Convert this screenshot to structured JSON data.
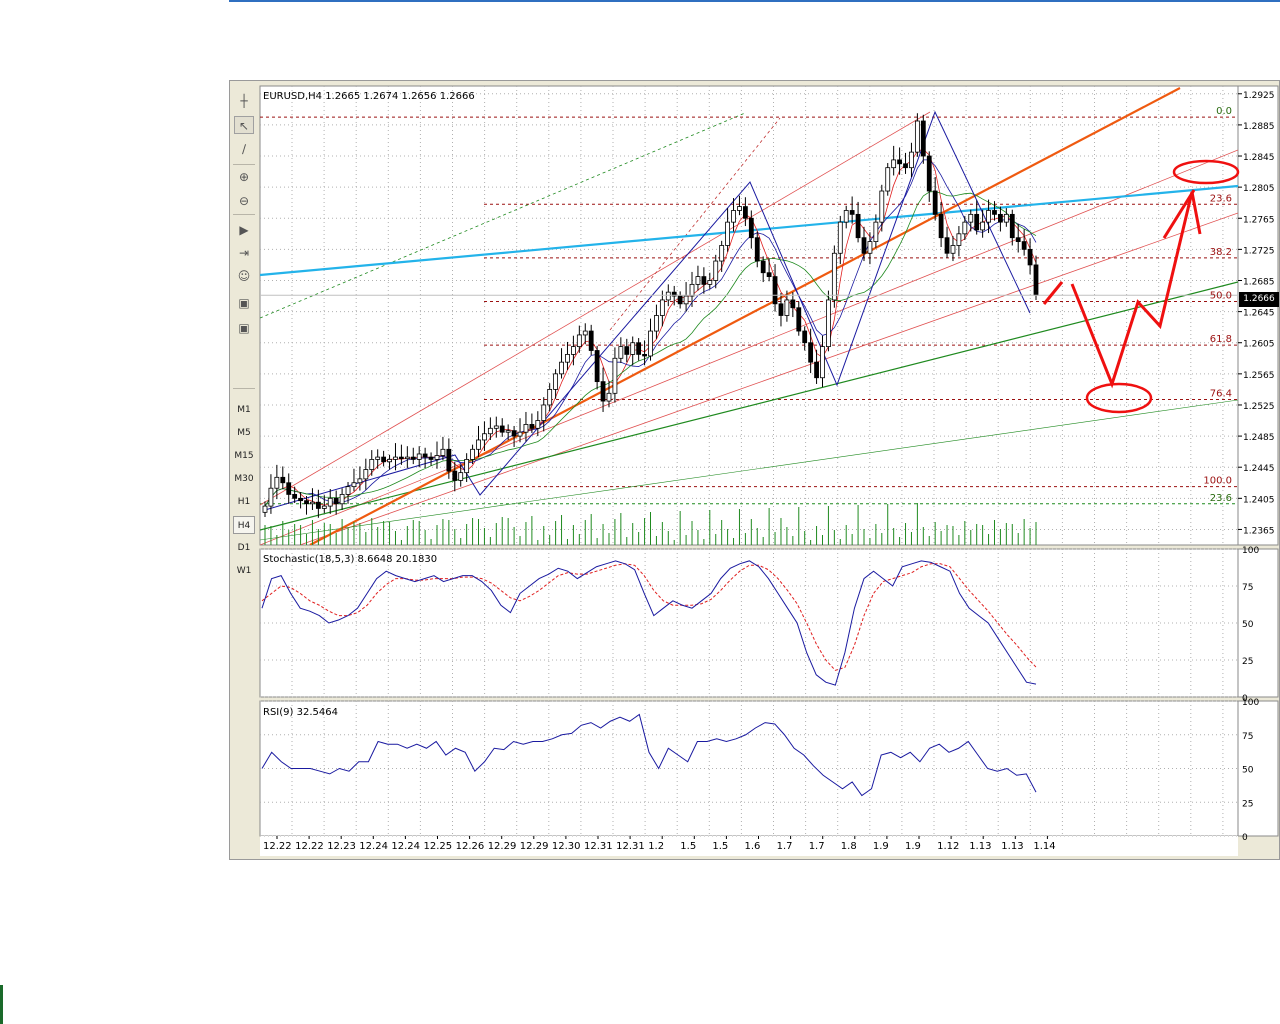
{
  "chart_data": [
    {
      "type": "candlestick",
      "title": "EURUSD,H4  1.2665 1.2674 1.2656 1.2666",
      "symbol": "EURUSD",
      "timeframe": "H4",
      "ohlc_header": {
        "open": 1.2665,
        "high": 1.2674,
        "low": 1.2656,
        "close": 1.2666
      },
      "last_price": "1.2666",
      "ylim": [
        1.2345,
        1.2935
      ],
      "y_ticks": [
        "1.2925",
        "1.2885",
        "1.2845",
        "1.2805",
        "1.2765",
        "1.2725",
        "1.2685",
        "1.2645",
        "1.2605",
        "1.2565",
        "1.2525",
        "1.2485",
        "1.2445",
        "1.2405",
        "1.2365"
      ],
      "x_tick_labels": [
        "12.22",
        "12.22",
        "12.23",
        "12.24",
        "12.24",
        "12.25",
        "12.26",
        "12.29",
        "12.29",
        "12.30",
        "12.31",
        "12.31",
        "1.2",
        "1.5",
        "1.5",
        "1.6",
        "1.7",
        "1.7",
        "1.8",
        "1.9",
        "1.9",
        "1.12",
        "1.13",
        "1.13",
        "1.14"
      ],
      "grid": true,
      "series": [
        {
          "name": "EURUSD",
          "close": [
            1.2395,
            1.2418,
            1.2432,
            1.2425,
            1.241,
            1.2405,
            1.2402,
            1.2398,
            1.24,
            1.2392,
            1.2395,
            1.2405,
            1.2398,
            1.241,
            1.242,
            1.2425,
            1.243,
            1.2442,
            1.2455,
            1.2458,
            1.2452,
            1.2455,
            1.2458,
            1.2456,
            1.2458,
            1.2455,
            1.2462,
            1.2458,
            1.2455,
            1.246,
            1.2468,
            1.244,
            1.2428,
            1.2438,
            1.2455,
            1.2468,
            1.248,
            1.2488,
            1.2495,
            1.2498,
            1.249,
            1.2492,
            1.2485,
            1.249,
            1.25,
            1.2495,
            1.2505,
            1.2525,
            1.2545,
            1.2565,
            1.258,
            1.259,
            1.26,
            1.2615,
            1.262,
            1.2595,
            1.2555,
            1.253,
            1.254,
            1.2585,
            1.26,
            1.259,
            1.2605,
            1.259,
            1.2588,
            1.262,
            1.264,
            1.266,
            1.267,
            1.2665,
            1.2655,
            1.2665,
            1.268,
            1.269,
            1.268,
            1.2685,
            1.271,
            1.273,
            1.276,
            1.2775,
            1.278,
            1.2765,
            1.274,
            1.271,
            1.2695,
            1.269,
            1.2655,
            1.264,
            1.266,
            1.265,
            1.262,
            1.2605,
            1.258,
            1.256,
            1.26,
            1.266,
            1.272,
            1.276,
            1.2775,
            1.277,
            1.274,
            1.272,
            1.2735,
            1.276,
            1.28,
            1.283,
            1.284,
            1.2835,
            1.283,
            1.285,
            1.289,
            1.2845,
            1.28,
            1.277,
            1.274,
            1.272,
            1.273,
            1.2745,
            1.276,
            1.277,
            1.275,
            1.276,
            1.2775,
            1.277,
            1.276,
            1.277,
            1.274,
            1.2735,
            1.2725,
            1.2705,
            1.2666
          ]
        }
      ],
      "indicator_values": {
        "fibonacci_levels": [
          {
            "label": "0.0",
            "price": 1.2895
          },
          {
            "label": "23.6",
            "price": 1.2783
          },
          {
            "label": "38.2",
            "price": 1.2714
          },
          {
            "label": "50.0",
            "price": 1.2658
          },
          {
            "label": "61.8",
            "price": 1.2602
          },
          {
            "label": "76.4",
            "price": 1.2532
          },
          {
            "label": "100.0",
            "price": 1.242
          },
          {
            "label": "23.6",
            "price": 1.2398
          }
        ]
      }
    },
    {
      "type": "line",
      "title": "Stochastic(18,5,3)  8.6648  20.1830",
      "ylim": [
        0,
        100
      ],
      "y_ticks": [
        "100",
        "75",
        "50",
        "25",
        "0"
      ],
      "series": [
        {
          "name": "main",
          "values": [
            60,
            80,
            82,
            70,
            60,
            58,
            55,
            50,
            52,
            55,
            60,
            70,
            80,
            85,
            82,
            80,
            78,
            80,
            82,
            78,
            80,
            82,
            82,
            78,
            72,
            62,
            57,
            70,
            75,
            80,
            83,
            87,
            85,
            80,
            84,
            88,
            90,
            92,
            90,
            86,
            70,
            55,
            60,
            65,
            62,
            60,
            65,
            70,
            80,
            87,
            90,
            92,
            88,
            80,
            70,
            60,
            50,
            30,
            15,
            10,
            8,
            30,
            60,
            80,
            85,
            80,
            75,
            88,
            90,
            92,
            91,
            88,
            85,
            70,
            60,
            55,
            50,
            40,
            30,
            20,
            10,
            8.7
          ]
        },
        {
          "name": "signal",
          "values": [
            65,
            70,
            75,
            74,
            70,
            65,
            62,
            58,
            55,
            55,
            57,
            62,
            70,
            76,
            80,
            80,
            79,
            79,
            80,
            80,
            80,
            81,
            81,
            80,
            77,
            72,
            67,
            65,
            68,
            72,
            77,
            82,
            84,
            83,
            83,
            85,
            87,
            89,
            90,
            89,
            82,
            72,
            65,
            62,
            62,
            62,
            63,
            66,
            72,
            79,
            85,
            89,
            89,
            86,
            80,
            72,
            63,
            50,
            36,
            25,
            18,
            20,
            35,
            55,
            70,
            78,
            80,
            82,
            84,
            88,
            90,
            90,
            88,
            80,
            72,
            65,
            58,
            50,
            42,
            35,
            27,
            20.2
          ]
        }
      ]
    },
    {
      "type": "line",
      "title": "RSI(9)  32.5464",
      "ylim": [
        0,
        100
      ],
      "y_ticks": [
        "100",
        "75",
        "50",
        "25",
        "0"
      ],
      "series": [
        {
          "name": "RSI(9)",
          "values": [
            50,
            62,
            55,
            50,
            50,
            50,
            48,
            46,
            50,
            48,
            55,
            55,
            70,
            68,
            68,
            65,
            68,
            65,
            70,
            60,
            65,
            62,
            48,
            55,
            65,
            64,
            70,
            68,
            70,
            70,
            72,
            75,
            76,
            82,
            84,
            80,
            85,
            88,
            85,
            90,
            62,
            50,
            65,
            60,
            55,
            70,
            70,
            72,
            70,
            72,
            75,
            80,
            84,
            83,
            75,
            65,
            60,
            52,
            45,
            40,
            35,
            40,
            30,
            35,
            60,
            62,
            58,
            62,
            55,
            65,
            68,
            62,
            65,
            70,
            60,
            50,
            48,
            50,
            45,
            46,
            32.5
          ]
        }
      ]
    }
  ],
  "toolbar": {
    "timeframes": [
      "M1",
      "M5",
      "M15",
      "M30",
      "H1",
      "H4",
      "D1",
      "W1"
    ],
    "active_timeframe": "H4"
  },
  "colors": {
    "bull_candle": "#ffffff",
    "bear_candle": "#000000",
    "fib_level": "#9b1010",
    "volume": "#1f8a1f",
    "stochastic_main": "#1a1aa0",
    "stochastic_signal": "#e02020",
    "rsi": "#1a1aa0",
    "trend_orange": "#ef5a10",
    "trend_cyan": "#23b3ea",
    "support_green": "#1f8a1f",
    "annotation_red": "#ef1010"
  }
}
